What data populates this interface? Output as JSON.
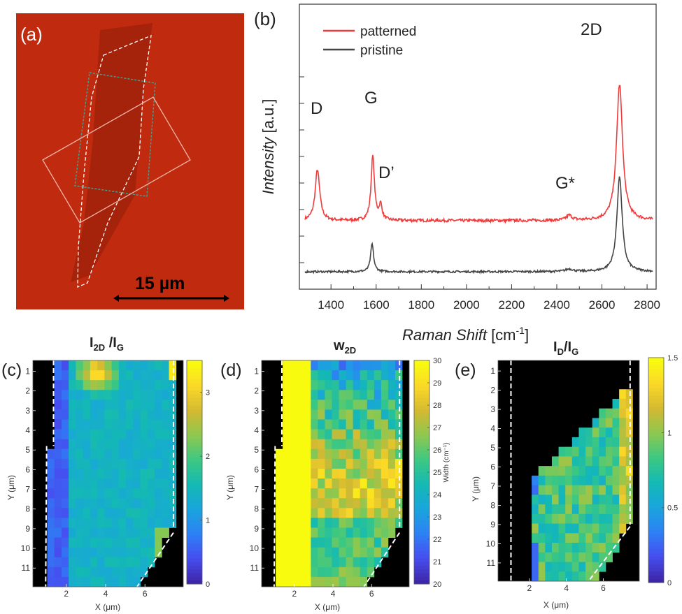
{
  "colors": {
    "substrate": "#c02a0e",
    "patterned": "#ef3b3b",
    "pristine": "#444444",
    "dash_white": "#ffffff",
    "dash_green": "#3fa08e",
    "rect_pink": "#f2b3a8"
  },
  "panel_a": {
    "label": "(a)",
    "scale_bar": "15 µm"
  },
  "panel_b": {
    "label": "(b)",
    "legend": [
      "patterned",
      "pristine"
    ],
    "peaks": [
      "D",
      "G",
      "D’",
      "G*",
      "2D"
    ]
  },
  "chart_data": [
    {
      "type": "line",
      "panel": "b",
      "ylabel_italic": "Intensity",
      "ylabel_unit": "[a.u.]",
      "xlabel_italic": "Raman Shift",
      "xlabel_unit": "[cm",
      "xlabel_sup": "-1",
      "xlabel_close": "]",
      "xlim": [
        1260,
        2840
      ],
      "xticks": [
        "1400",
        "1600",
        "1800",
        "2000",
        "2200",
        "2400",
        "2600",
        "2800"
      ],
      "xtick_values": [
        1400,
        1600,
        1800,
        2000,
        2200,
        2400,
        2600,
        2800
      ],
      "series": [
        {
          "name": "patterned",
          "baseline": 0.62,
          "noise": 0.018,
          "peaks": [
            {
              "x": 1340,
              "h": 0.62,
              "w": 12
            },
            {
              "x": 1585,
              "h": 0.78,
              "w": 9
            },
            {
              "x": 1620,
              "h": 0.18,
              "w": 8
            },
            {
              "x": 2455,
              "h": 0.06,
              "w": 15
            },
            {
              "x": 2678,
              "h": 1.65,
              "w": 16
            }
          ]
        },
        {
          "name": "pristine",
          "baseline": 0.0,
          "noise": 0.012,
          "peaks": [
            {
              "x": 1582,
              "h": 0.34,
              "w": 8
            },
            {
              "x": 2455,
              "h": 0.03,
              "w": 20
            },
            {
              "x": 2678,
              "h": 1.15,
              "w": 14
            }
          ]
        }
      ]
    },
    {
      "type": "heatmap",
      "panel": "c",
      "label": "(c)",
      "title_main": "I",
      "title_sub": "2D",
      "title_mid": " /I",
      "title_sub2": "G",
      "xlabel": "X (μm)",
      "ylabel": "Y (μm)",
      "xticks": [
        "2",
        "4",
        "6"
      ],
      "xtick_values": [
        2,
        4,
        6
      ],
      "yticks": [
        "1",
        "2",
        "3",
        "4",
        "5",
        "6",
        "7",
        "8",
        "9",
        "10",
        "11"
      ],
      "xlim": [
        0.3,
        7.95
      ],
      "ylim": [
        0.45,
        11.95
      ],
      "clim": [
        0,
        3.5
      ],
      "colorbar_ticks": [
        "0",
        "1",
        "2",
        "3"
      ],
      "colorbar_values": [
        0,
        1,
        2,
        3
      ]
    },
    {
      "type": "heatmap",
      "panel": "d",
      "label": "(d)",
      "title_main": "w",
      "title_sub": "2D",
      "xlabel": "X (μm)",
      "ylabel": "Y (μm)",
      "colorbar_label": "Width (cm⁻¹)",
      "xticks": [
        "2",
        "4",
        "6"
      ],
      "xtick_values": [
        2,
        4,
        6
      ],
      "yticks": [
        "1",
        "2",
        "3",
        "4",
        "5",
        "6",
        "7",
        "8",
        "9",
        "10",
        "11"
      ],
      "xlim": [
        0.3,
        7.95
      ],
      "ylim": [
        0.45,
        11.95
      ],
      "clim": [
        20,
        30
      ],
      "colorbar_ticks": [
        "20",
        "21",
        "22",
        "23",
        "24",
        "25",
        "26",
        "27",
        "28",
        "29",
        "30"
      ],
      "colorbar_values": [
        20,
        21,
        22,
        23,
        24,
        25,
        26,
        27,
        28,
        29,
        30
      ]
    },
    {
      "type": "heatmap",
      "panel": "e",
      "label": "(e)",
      "title_main": "I",
      "title_sub": "D",
      "title_mid": "/I",
      "title_sub2": "G",
      "xlabel": "X (μm)",
      "ylabel": "Y (μm)",
      "xticks": [
        "2",
        "4",
        "6"
      ],
      "xtick_values": [
        2,
        4,
        6
      ],
      "yticks": [
        "1",
        "2",
        "3",
        "4",
        "5",
        "6",
        "7",
        "8",
        "9",
        "10",
        "11"
      ],
      "xlim": [
        0.3,
        7.95
      ],
      "ylim": [
        0.45,
        11.95
      ],
      "clim": [
        0,
        1.5
      ],
      "colorbar_ticks": [
        "0",
        "0.5",
        "1",
        "1.5"
      ],
      "colorbar_values": [
        0,
        0.5,
        1,
        1.5
      ]
    }
  ]
}
